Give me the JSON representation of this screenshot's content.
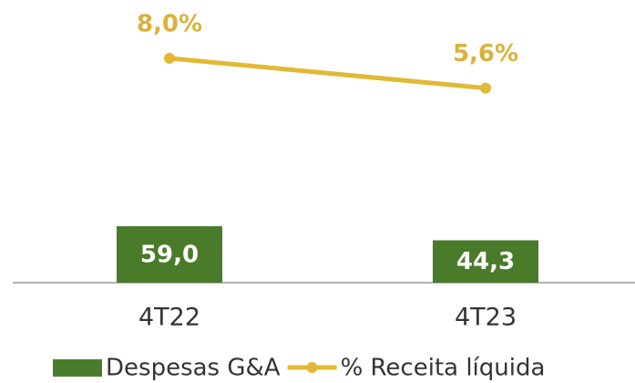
{
  "chart_data": {
    "type": "bar-line",
    "categories": [
      "4T22",
      "4T23"
    ],
    "series": [
      {
        "name": "Despesas G&A",
        "type": "bar",
        "color": "#4a7b2b",
        "values": [
          59.0,
          44.3
        ],
        "value_labels": [
          "59,0",
          "44,3"
        ]
      },
      {
        "name": "% Receita líquida",
        "type": "line",
        "axis": "y2",
        "color": "#e2b935",
        "values": [
          8.0,
          5.6
        ],
        "value_labels": [
          "8,0%",
          "5,6%"
        ]
      }
    ],
    "ylim": [
      0,
      280
    ],
    "y2lim": [
      -10,
      11.5
    ],
    "legend": "bottom"
  }
}
